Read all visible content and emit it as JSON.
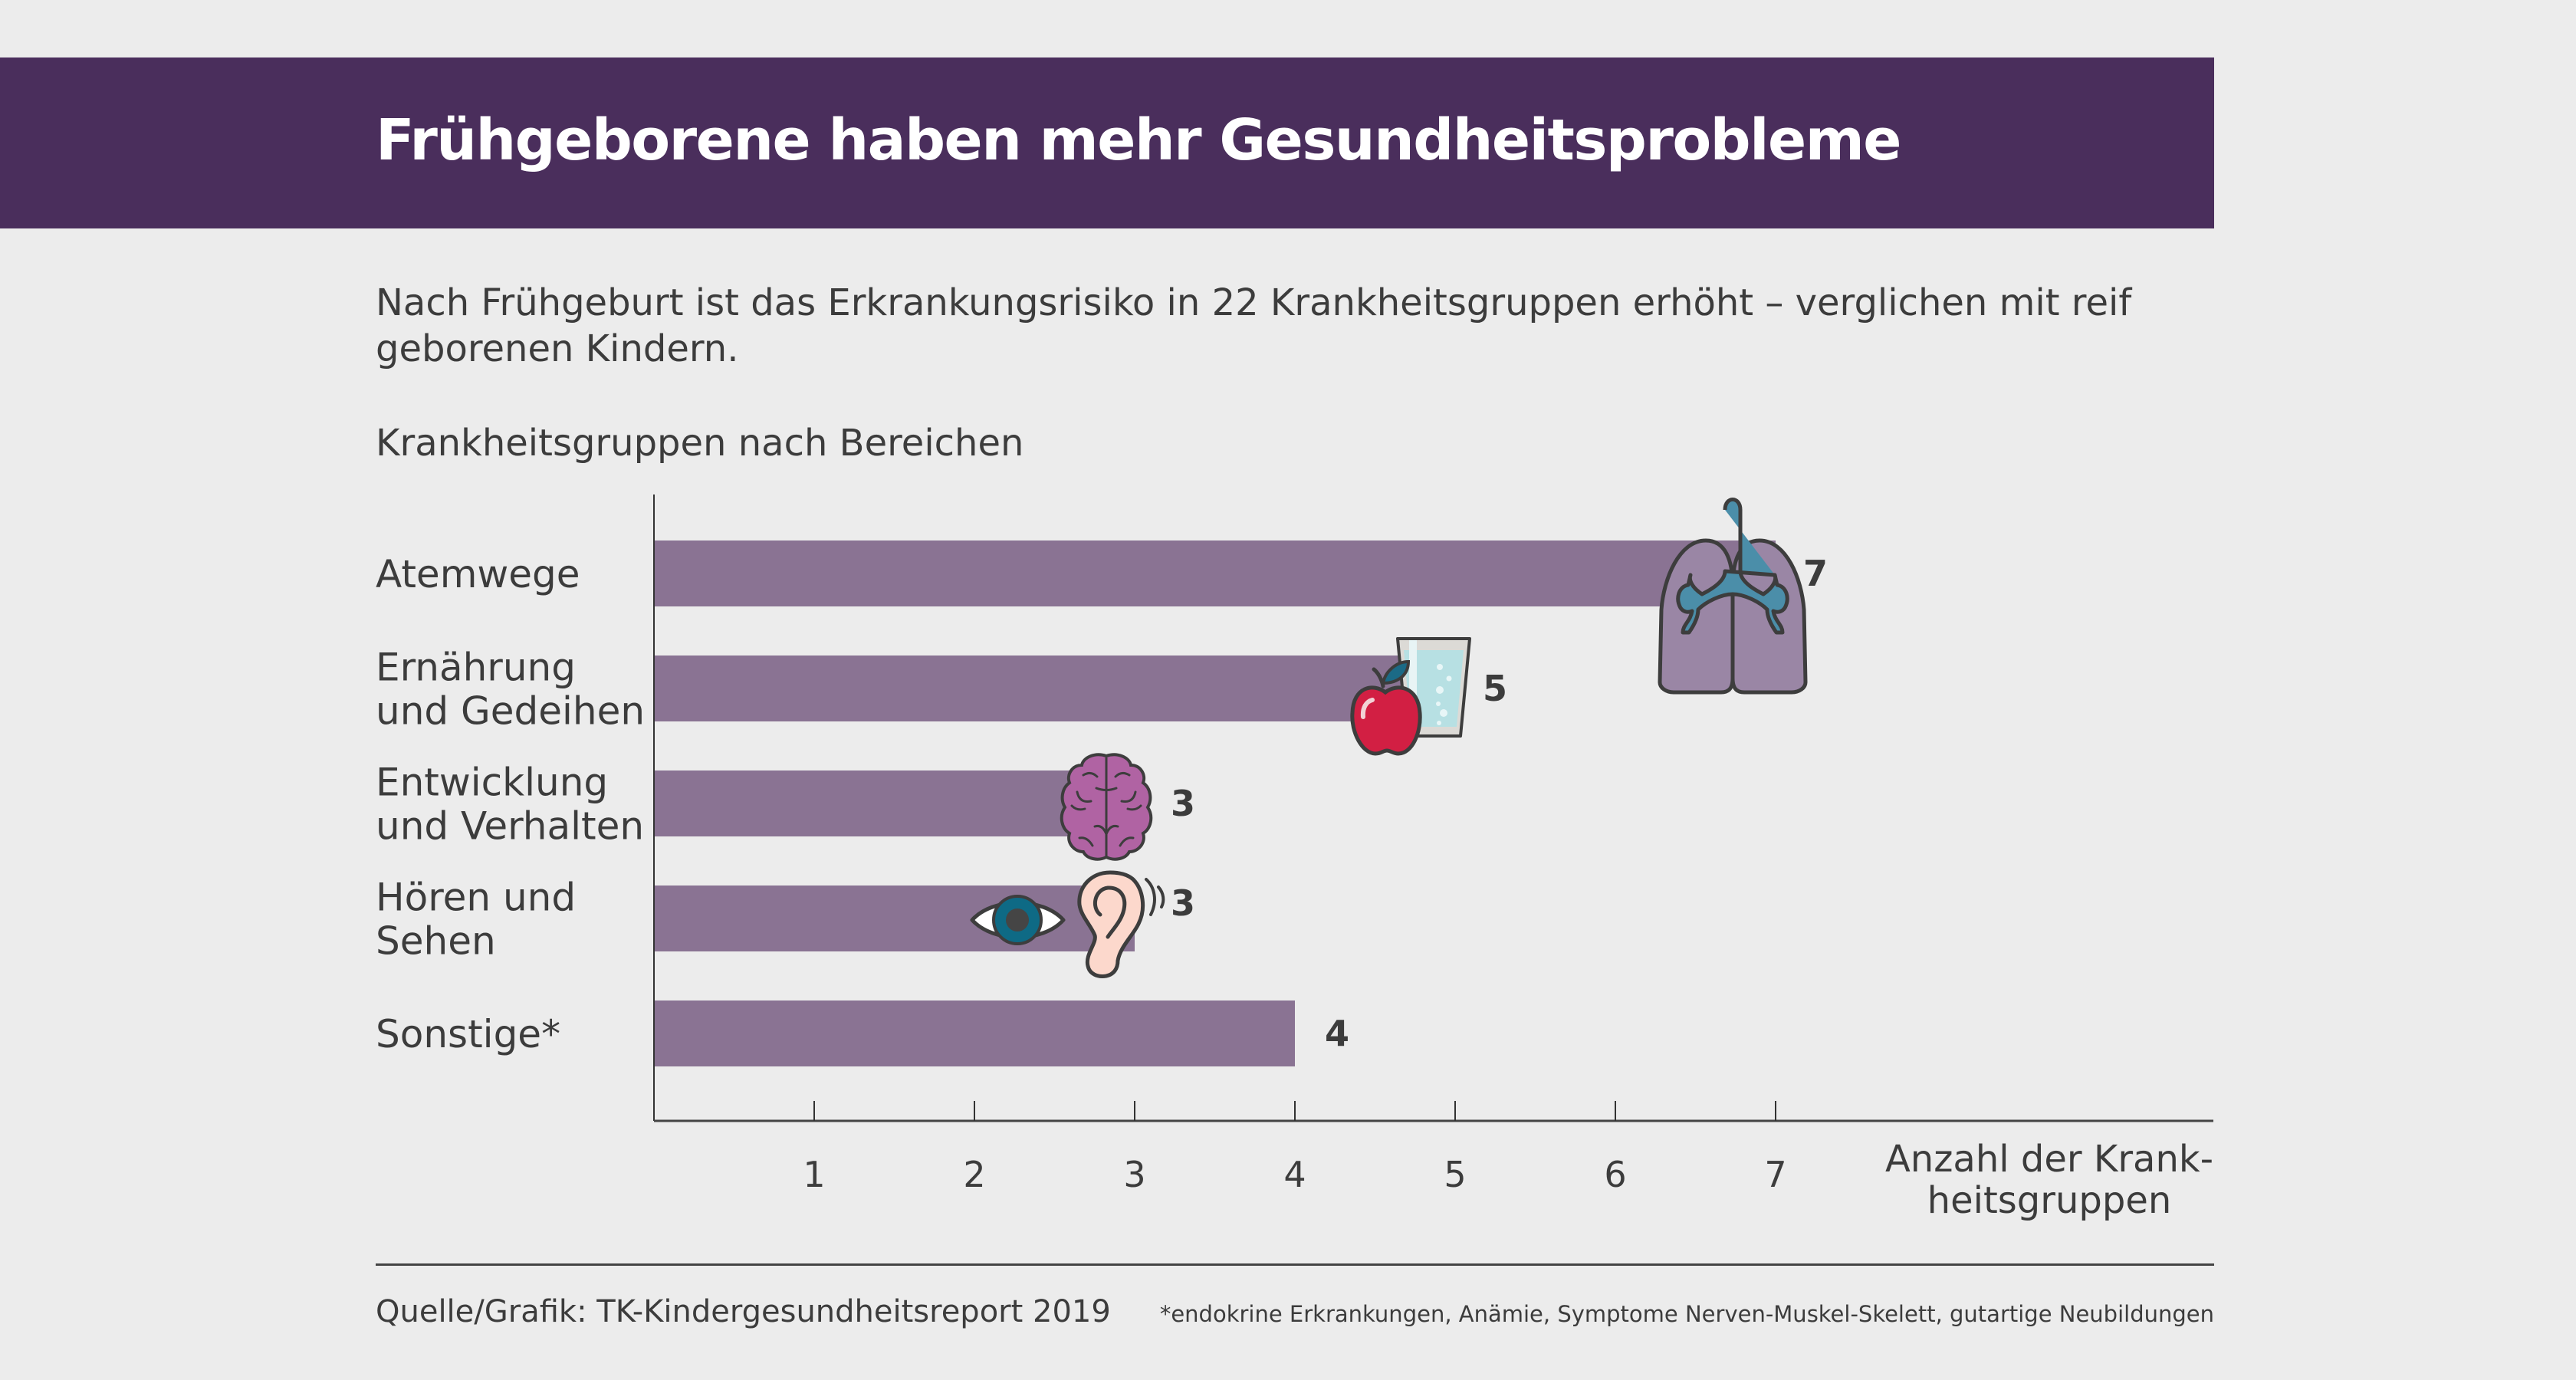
{
  "header": {
    "title": "Frühgeborene haben mehr Gesundheitsprobleme"
  },
  "subtitle": "Nach Frühgeburt ist das Erkrankungsrisiko in 22 Krankheitsgruppen erhöht – verglichen mit reif geborenen Kindern.",
  "colors": {
    "banner": "#4a2e5c",
    "bar": "#8a7393",
    "background": "#ececec",
    "text": "#3c3c3c"
  },
  "chart_data": {
    "type": "bar",
    "orientation": "horizontal",
    "title": "Krankheitsgruppen nach Bereichen",
    "categories": [
      [
        "Atemwege"
      ],
      [
        "Ernährung",
        "und Gedeihen"
      ],
      [
        "Entwicklung",
        "und Verhalten"
      ],
      [
        "Hören und",
        "Sehen"
      ],
      [
        "Sonstige*"
      ]
    ],
    "category_names": [
      "Atemwege",
      "Ernährung und Gedeihen",
      "Entwicklung und Verhalten",
      "Hören und Sehen",
      "Sonstige*"
    ],
    "values": [
      7,
      5,
      3,
      3,
      4
    ],
    "icons": [
      [
        "lungs-icon"
      ],
      [
        "apple-icon",
        "water-glass-icon"
      ],
      [
        "brain-icon"
      ],
      [
        "eye-icon",
        "ear-icon"
      ],
      []
    ],
    "xlabel": [
      "Anzahl der Krank-",
      "heitsgruppen"
    ],
    "ylabel": "",
    "xticks": [
      1,
      2,
      3,
      4,
      5,
      6,
      7
    ],
    "xlim": [
      0,
      9.7
    ],
    "grid": false,
    "legend": "none"
  },
  "footer": {
    "source": "Quelle/Grafik: TK-Kindergesundheitsreport 2019",
    "footnote": "*endokrine Erkrankungen, Anämie, Symptome Nerven-Muskel-Skelett, gutartige Neubildungen"
  }
}
